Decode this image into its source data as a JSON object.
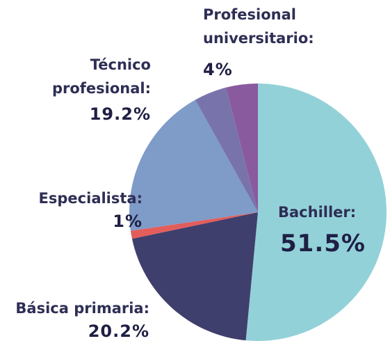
{
  "chart_data": {
    "type": "pie",
    "categories": [
      "Bachiller:",
      "Básica primaria:",
      "Especialista:",
      "Técnico profesional:",
      null,
      "Profesional universitario:"
    ],
    "values": [
      51.5,
      20.2,
      1,
      19.2,
      4.1,
      4
    ],
    "value_labels": [
      "51.5%",
      "20.2%",
      "1%",
      "19.2%",
      null,
      "4%"
    ],
    "colors": [
      "#93d1d8",
      "#3f3f6d",
      "#e35d5b",
      "#7f9bc8",
      "#7874ab",
      "#8a5a9f"
    ]
  }
}
